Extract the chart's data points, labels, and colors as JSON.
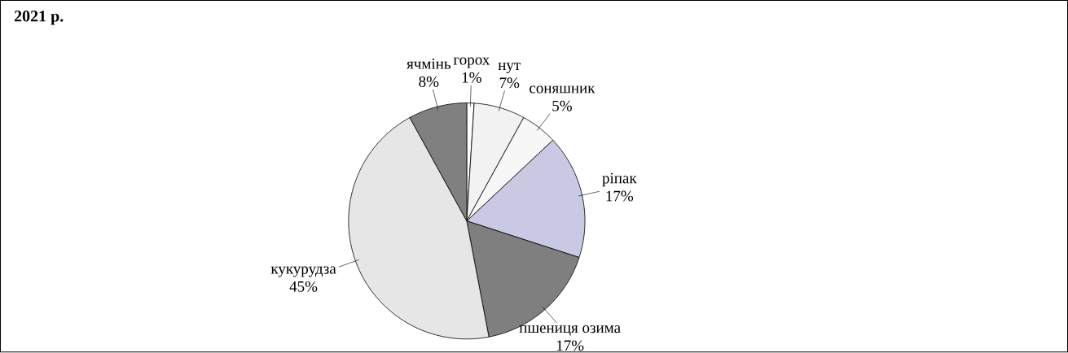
{
  "chart_data": {
    "type": "pie",
    "title": "2021 р.",
    "categories": [
      "горох",
      "нут",
      "соняшник",
      "ріпак",
      "пшениця озима",
      "кукурудза",
      "ячмінь"
    ],
    "values": [
      1,
      7,
      5,
      17,
      17,
      45,
      8
    ],
    "value_labels": [
      "1%",
      "7%",
      "5%",
      "17%",
      "17%",
      "45%",
      "8%"
    ],
    "colors": [
      "#ffffff",
      "#f2f2f2",
      "#f7f7f7",
      "#c9c9e3",
      "#7f7f7f",
      "#e6e6e6",
      "#808080"
    ]
  }
}
